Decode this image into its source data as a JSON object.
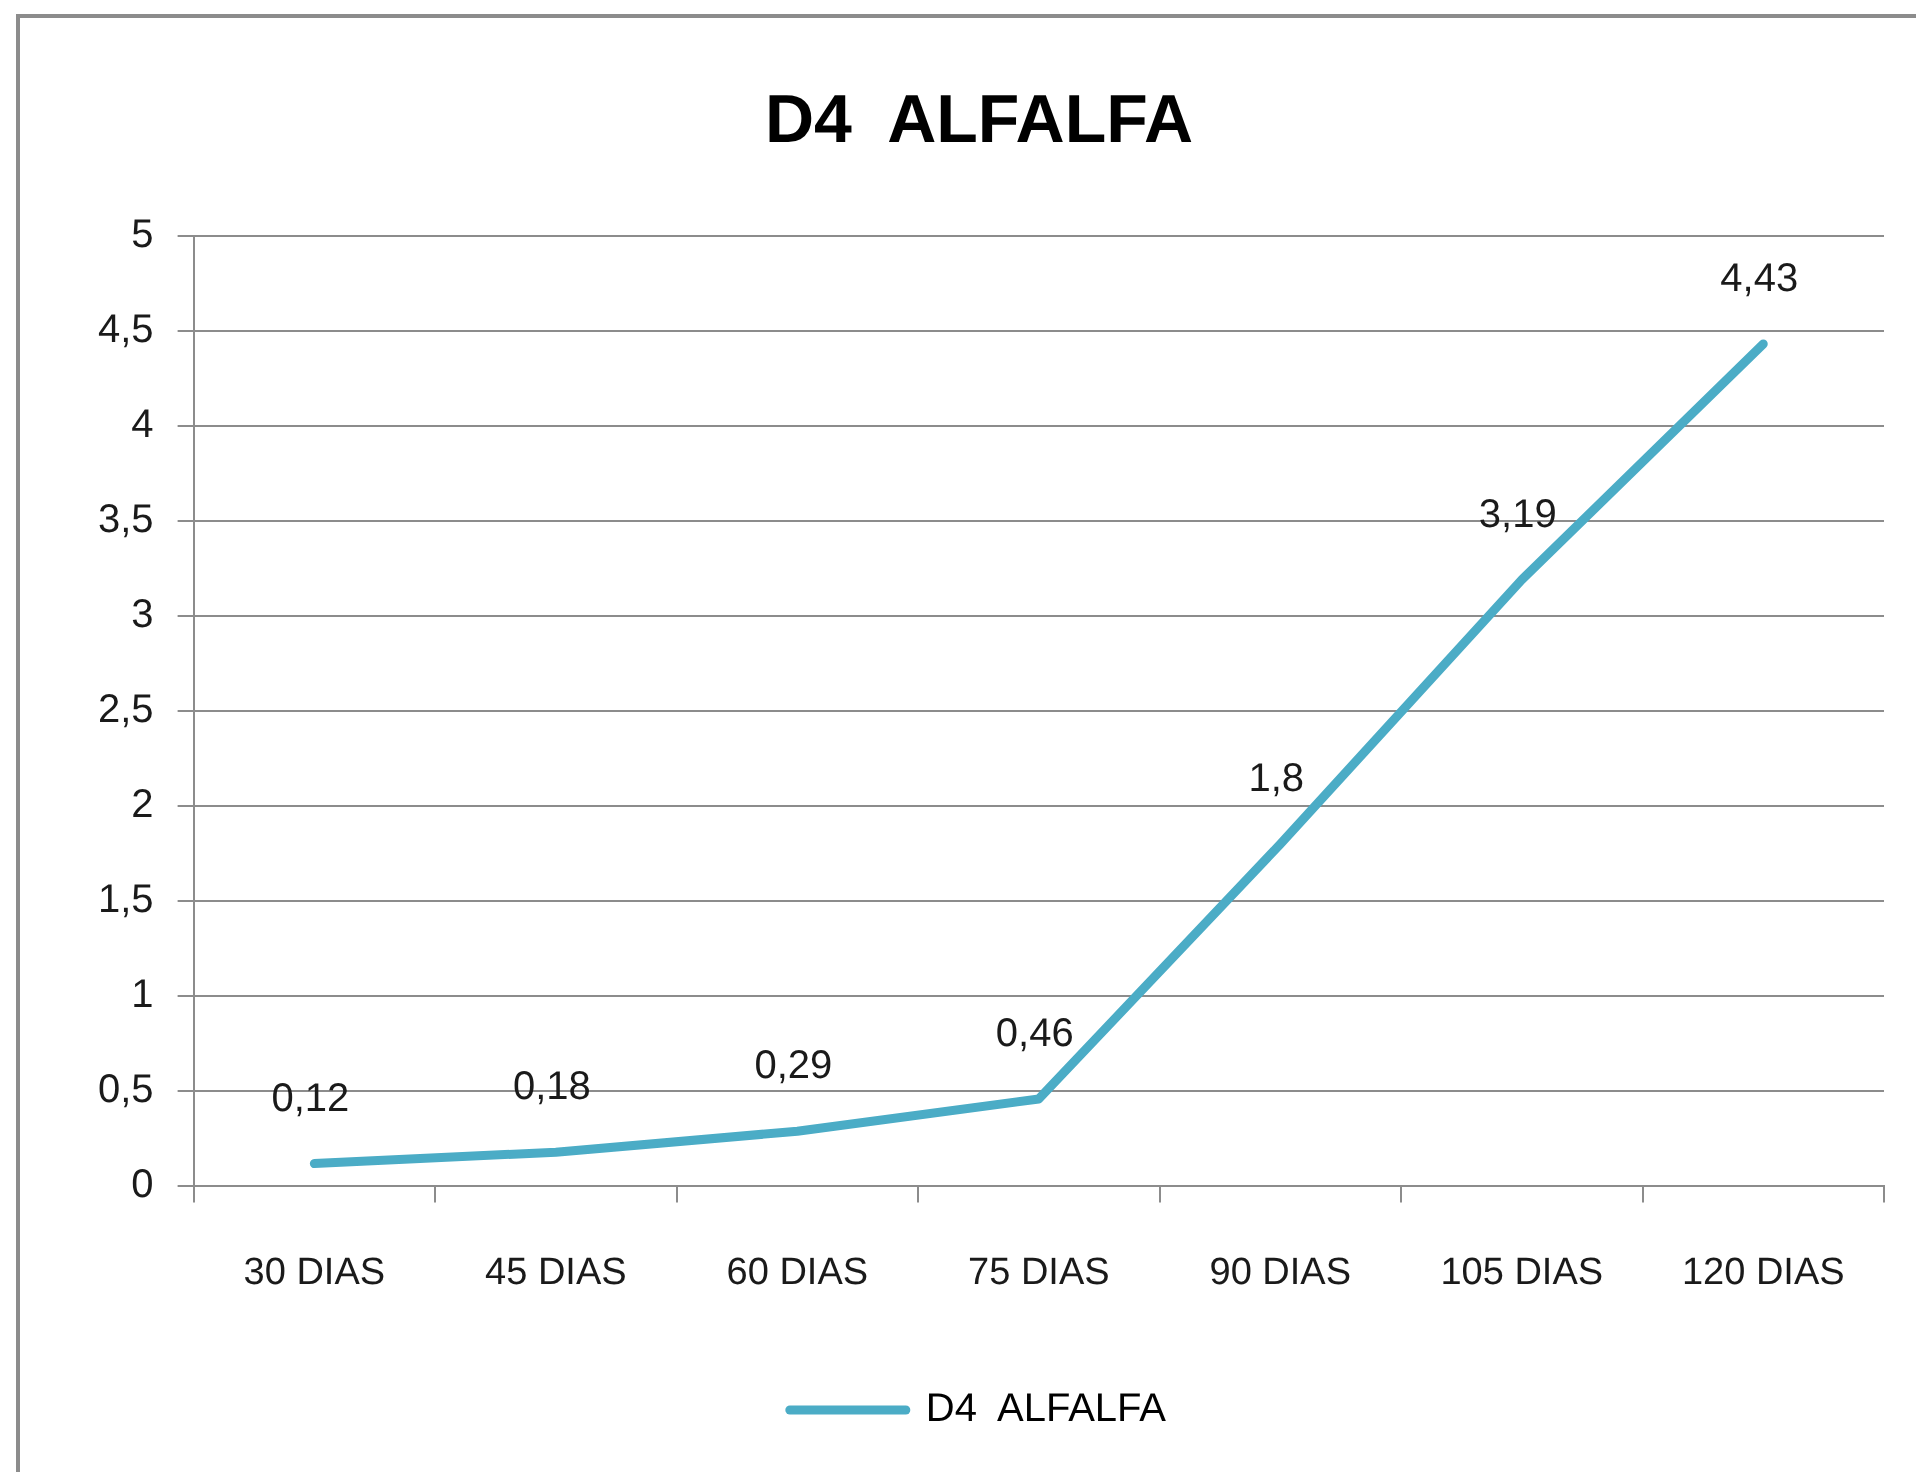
{
  "chart_data": {
    "type": "line",
    "title": "D4  ALFALFA",
    "categories": [
      "30 DIAS",
      "45 DIAS",
      "60 DIAS",
      "75 DIAS",
      "90 DIAS",
      "105 DIAS",
      "120 DIAS"
    ],
    "series": [
      {
        "name": "D4  ALFALFA",
        "color": "#4bacc6",
        "values": [
          0.12,
          0.18,
          0.29,
          0.46,
          1.8,
          3.19,
          4.43
        ],
        "value_labels": [
          "0,12",
          "0,18",
          "0,29",
          "0,46",
          "1,8",
          "3,19",
          "4,43"
        ]
      }
    ],
    "ylim": [
      0,
      5
    ],
    "yticks": [
      0,
      {
        "value": 0.5,
        "label": "0,5"
      },
      1,
      {
        "value": 1.5,
        "label": "1,5"
      },
      2,
      {
        "value": 2.5,
        "label": "2,5"
      },
      3,
      {
        "value": 3.5,
        "label": "3,5"
      },
      4,
      {
        "value": 4.5,
        "label": "4,5"
      },
      5
    ],
    "grid": "y",
    "legend": "bottom",
    "marker": "none",
    "line_style": "solid"
  }
}
